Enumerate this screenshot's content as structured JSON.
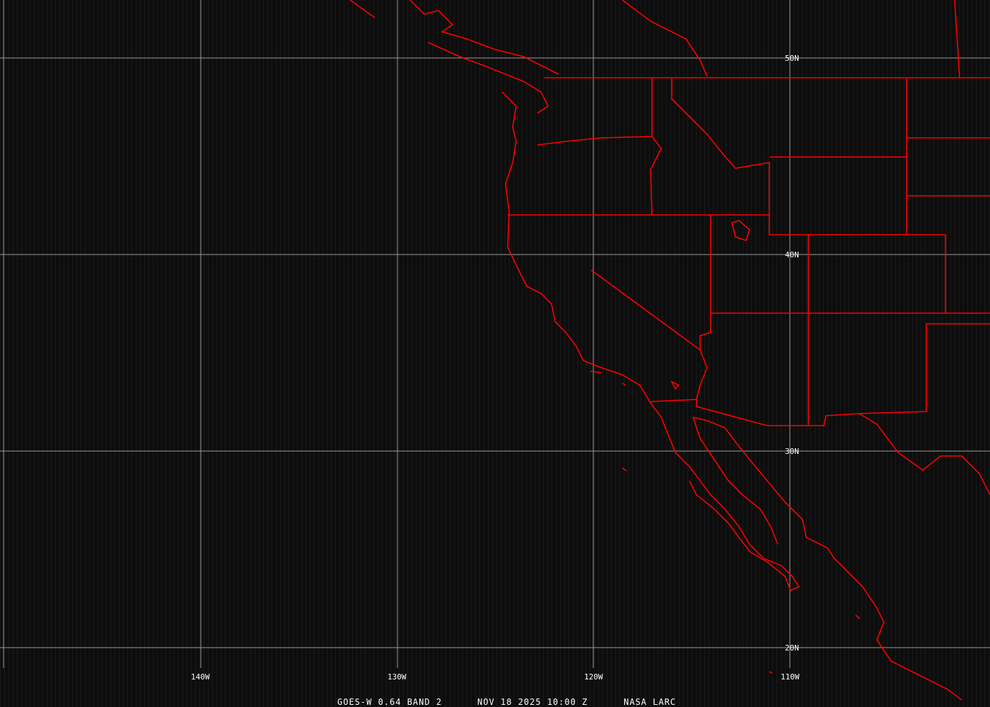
{
  "map": {
    "longitude_labels": [
      "140W",
      "130W",
      "120W",
      "110W"
    ],
    "latitude_labels": [
      "50N",
      "40N",
      "30N",
      "20N"
    ],
    "caption": {
      "satellite": "GOES-W 0.64 BAND 2",
      "datetime": "NOV 18 2025 10:00 Z",
      "source": "NASA LARC"
    },
    "colors": {
      "boundaries": "#ff0000",
      "grid": "#9a9a9a",
      "background": "#0d0d0d"
    }
  }
}
